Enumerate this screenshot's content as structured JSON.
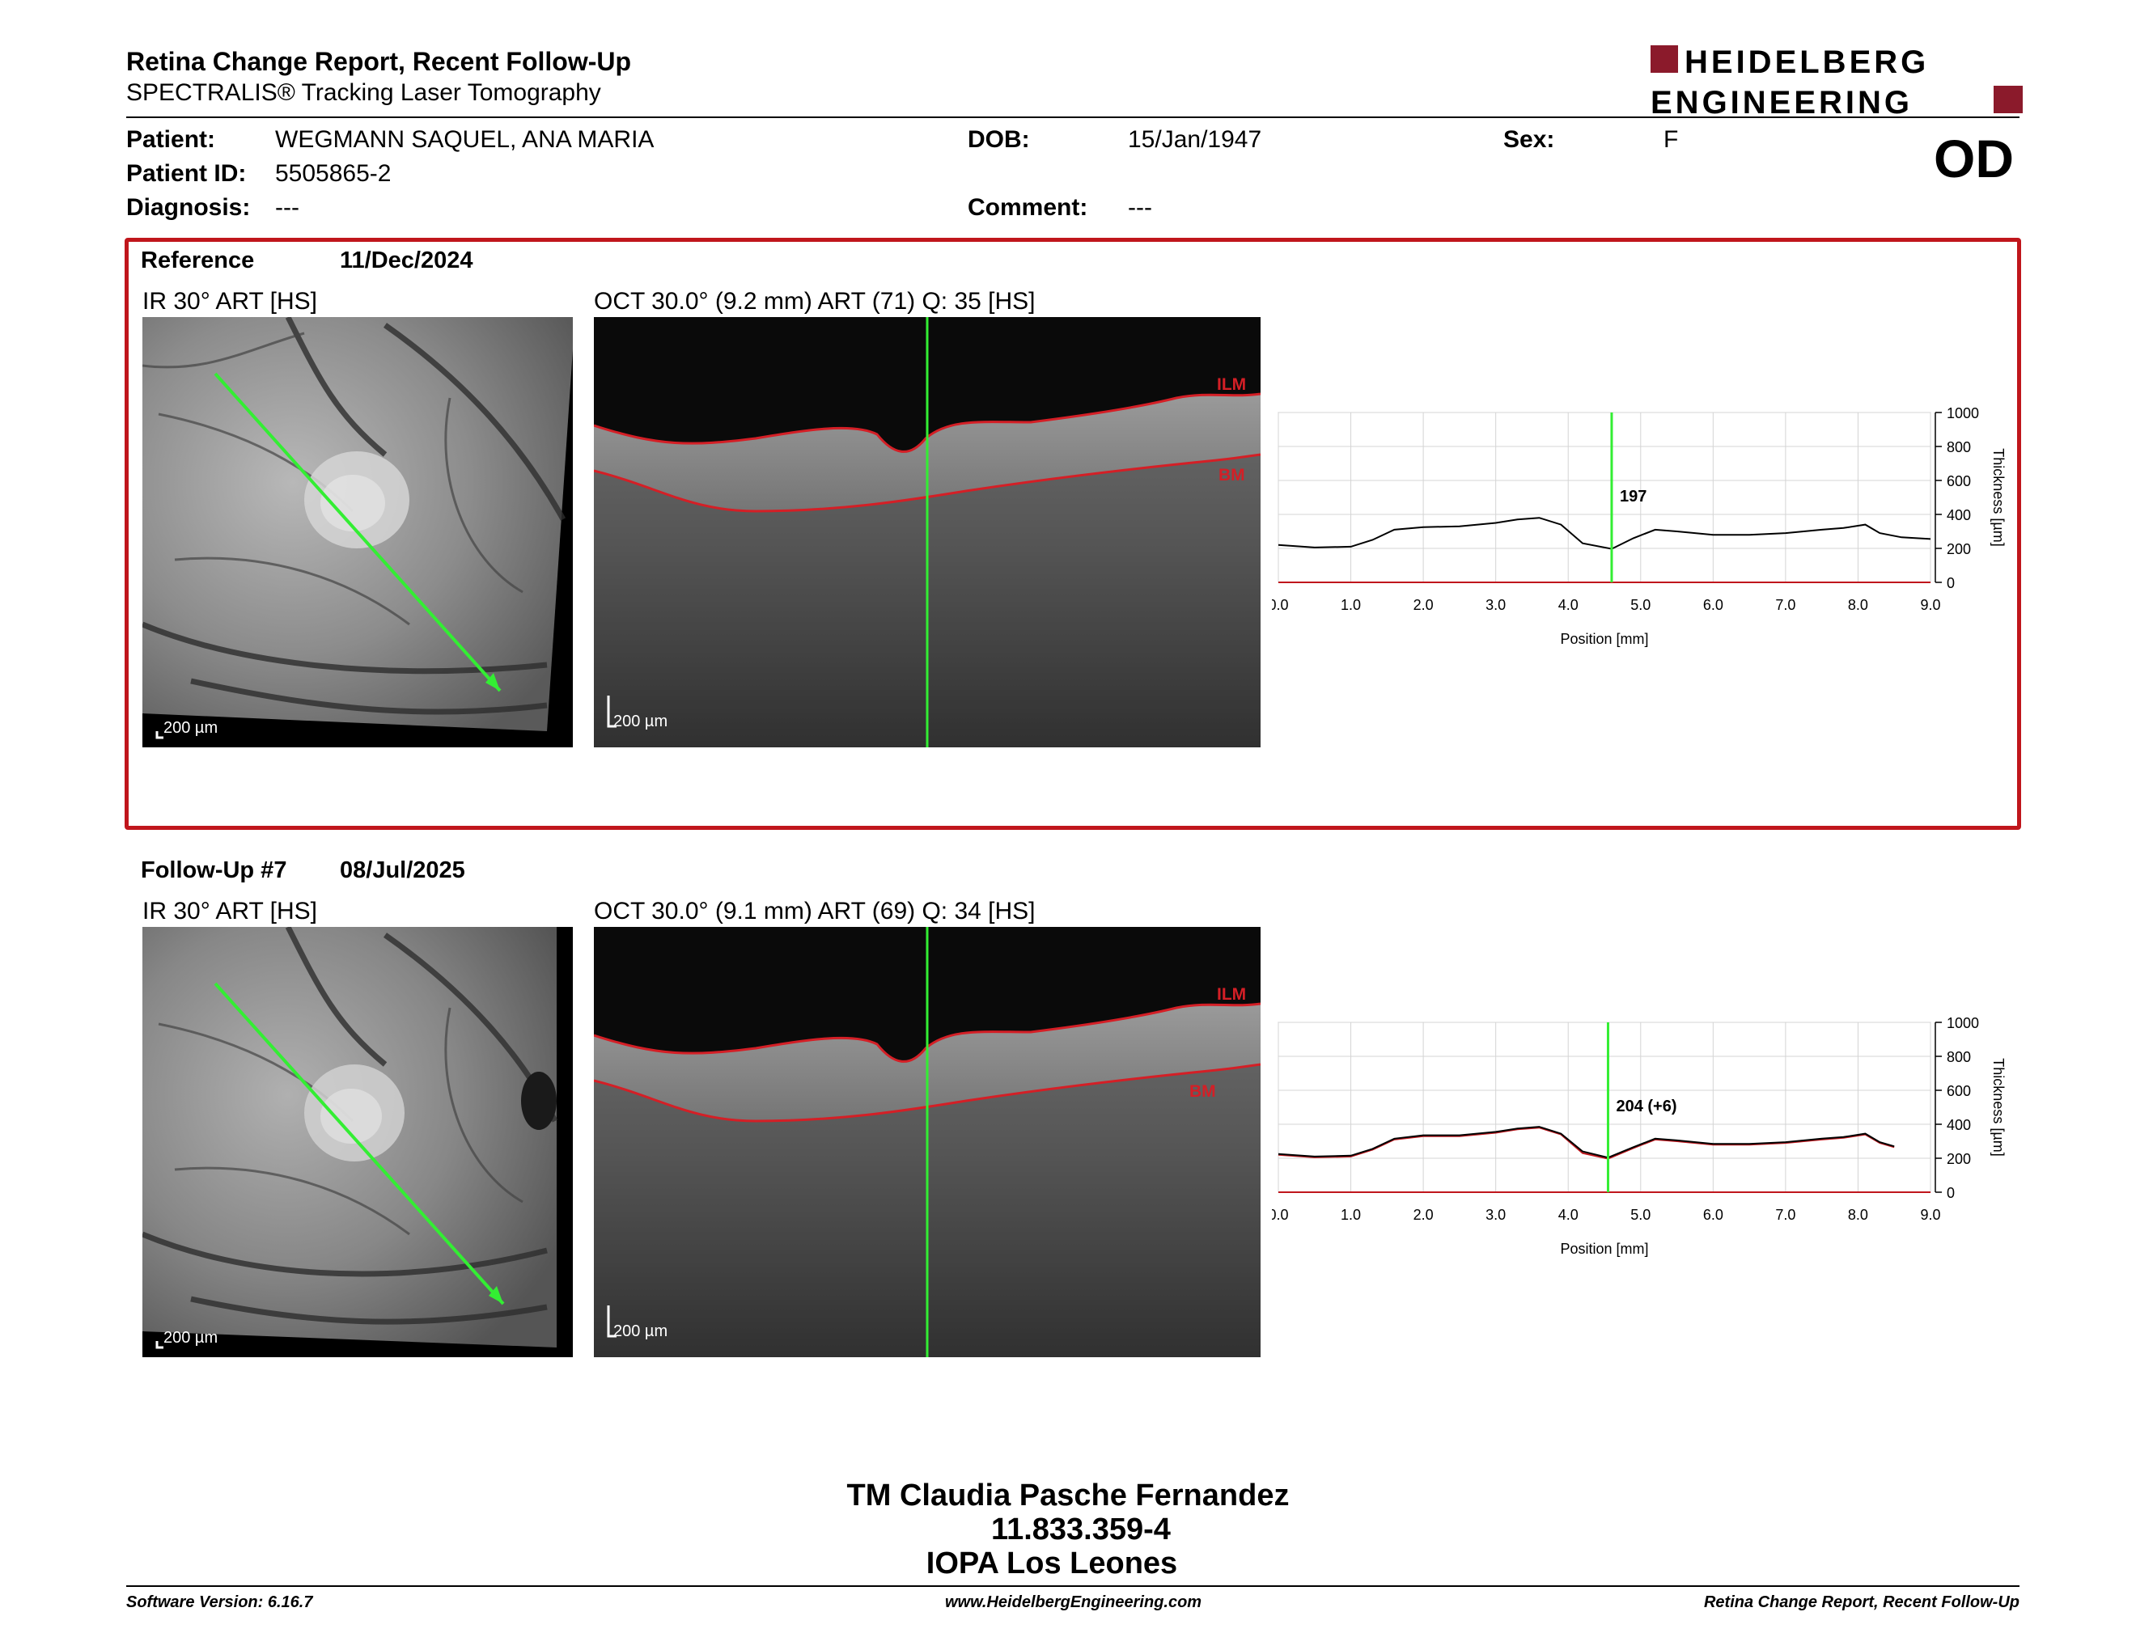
{
  "header": {
    "title": "Retina Change Report, Recent Follow-Up",
    "subtitle": "SPECTRALIS® Tracking Laser Tomography",
    "logo_line1": "HEIDELBERG",
    "logo_line2": "ENGINEERING",
    "eye": "OD"
  },
  "patient": {
    "patient_label": "Patient:",
    "patient_value": "WEGMANN SAQUEL, ANA MARIA",
    "id_label": "Patient ID:",
    "id_value": "5505865-2",
    "diagnosis_label": "Diagnosis:",
    "diagnosis_value": "---",
    "dob_label": "DOB:",
    "dob_value": "15/Jan/1947",
    "comment_label": "Comment:",
    "comment_value": "---",
    "sex_label": "Sex:",
    "sex_value": "F"
  },
  "reference": {
    "label": "Reference",
    "date": "11/Dec/2024",
    "ir_title": "IR 30° ART [HS]",
    "oct_title": "OCT 30.0° (9.2 mm) ART (71) Q: 35 [HS]",
    "ir_scale": "200 µm",
    "oct_scale": "200 µm",
    "ilm_label": "ILM",
    "bm_label": "BM",
    "cursor_label": "197"
  },
  "followup": {
    "label": "Follow-Up #7",
    "date": "08/Jul/2025",
    "ir_title": "IR 30° ART [HS]",
    "oct_title": "OCT 30.0° (9.1 mm) ART (69) Q: 34 [HS]",
    "ir_scale": "200 µm",
    "oct_scale": "200 µm",
    "ilm_label": "ILM",
    "bm_label": "BM",
    "cursor_label": "204 (+6)"
  },
  "chart_data": [
    {
      "type": "line",
      "xlabel": "Position [mm]",
      "ylabel": "Thickness [µm]",
      "xlim": [
        0,
        9
      ],
      "ylim": [
        0,
        1000
      ],
      "x_ticks": [
        "0.0",
        "1.0",
        "2.0",
        "3.0",
        "4.0",
        "5.0",
        "6.0",
        "7.0",
        "8.0",
        "9.0"
      ],
      "y_ticks": [
        "0",
        "200",
        "400",
        "600",
        "800",
        "1000"
      ],
      "cursor_x": 4.6,
      "grid": true,
      "series": [
        {
          "color": "#000000",
          "x": [
            0,
            0.5,
            1.0,
            1.3,
            1.6,
            2.0,
            2.5,
            3.0,
            3.3,
            3.6,
            3.9,
            4.2,
            4.6,
            4.9,
            5.2,
            5.5,
            6.0,
            6.5,
            7.0,
            7.5,
            7.8,
            8.1,
            8.3,
            8.6,
            9.0
          ],
          "y": [
            220,
            205,
            210,
            250,
            310,
            325,
            330,
            350,
            370,
            380,
            340,
            230,
            197,
            260,
            310,
            300,
            280,
            280,
            290,
            310,
            320,
            340,
            290,
            265,
            255
          ]
        }
      ]
    },
    {
      "type": "line",
      "xlabel": "Position [mm]",
      "ylabel": "Thickness [µm]",
      "xlim": [
        0,
        9
      ],
      "ylim": [
        0,
        1000
      ],
      "x_ticks": [
        "0.0",
        "1.0",
        "2.0",
        "3.0",
        "4.0",
        "5.0",
        "6.0",
        "7.0",
        "8.0",
        "9.0"
      ],
      "y_ticks": [
        "0",
        "200",
        "400",
        "600",
        "800",
        "1000"
      ],
      "cursor_x": 4.55,
      "grid": true,
      "series": [
        {
          "color": "#c0161c",
          "x": [
            0,
            0.5,
            1.0,
            1.3,
            1.6,
            2.0,
            2.5,
            3.0,
            3.3,
            3.6,
            3.9,
            4.2,
            4.55,
            4.9,
            5.2,
            5.5,
            6.0,
            6.5,
            7.0,
            7.5,
            7.8,
            8.1,
            8.3,
            8.5
          ],
          "y": [
            220,
            205,
            210,
            250,
            310,
            330,
            330,
            350,
            370,
            380,
            340,
            230,
            197,
            260,
            310,
            300,
            280,
            280,
            290,
            310,
            320,
            340,
            290,
            265
          ]
        },
        {
          "color": "#000000",
          "x": [
            0,
            0.5,
            1.0,
            1.3,
            1.6,
            2.0,
            2.5,
            3.0,
            3.3,
            3.6,
            3.9,
            4.2,
            4.55,
            4.9,
            5.2,
            5.5,
            6.0,
            6.5,
            7.0,
            7.5,
            7.8,
            8.1,
            8.3,
            8.5
          ],
          "y": [
            225,
            210,
            215,
            255,
            315,
            335,
            335,
            355,
            375,
            385,
            345,
            240,
            204,
            265,
            315,
            305,
            285,
            285,
            295,
            315,
            325,
            345,
            295,
            270
          ]
        }
      ]
    }
  ],
  "footer": {
    "name": "TM Claudia Pasche Fernandez",
    "id": "11.833.359-4",
    "clinic": "IOPA Los Leones",
    "software": "Software Version: 6.16.7",
    "website": "www.HeidelbergEngineering.com",
    "report": "Retina Change Report, Recent Follow-Up"
  }
}
